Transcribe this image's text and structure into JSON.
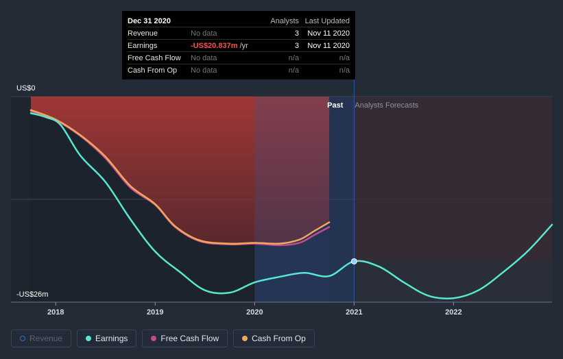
{
  "tooltip": {
    "date": "Dec 31 2020",
    "col_analysts": "Analysts",
    "col_updated": "Last Updated",
    "rows": [
      {
        "label": "Revenue",
        "value": "No data",
        "unit": "",
        "analysts": "3",
        "updated": "Nov 11 2020"
      },
      {
        "label": "Earnings",
        "value": "-US$20.837m",
        "unit": "/yr",
        "analysts": "3",
        "updated": "Nov 11 2020"
      },
      {
        "label": "Free Cash Flow",
        "value": "No data",
        "unit": "",
        "analysts": "n/a",
        "updated": "n/a"
      },
      {
        "label": "Cash From Op",
        "value": "No data",
        "unit": "",
        "analysts": "n/a",
        "updated": "n/a"
      }
    ]
  },
  "legend": [
    {
      "label": "Revenue",
      "color": "#2a6fd6",
      "active": false
    },
    {
      "label": "Earnings",
      "color": "#58e8d2",
      "active": true
    },
    {
      "label": "Free Cash Flow",
      "color": "#c84b8c",
      "active": true
    },
    {
      "label": "Cash From Op",
      "color": "#f0a860",
      "active": true
    }
  ],
  "chart_data": {
    "type": "line",
    "y_top_label": "US$0",
    "y_bottom_label": "-US$26m",
    "ylim": [
      -26,
      0
    ],
    "xlim": [
      2017.55,
      2022.99
    ],
    "x_ticks": [
      2018,
      2019,
      2020,
      2021,
      2022
    ],
    "x_tick_labels": [
      "2018",
      "2019",
      "2020",
      "2021",
      "2022"
    ],
    "past_label": "Past",
    "forecast_label": "Analysts Forecasts",
    "divider_x": 2021.0,
    "colors": {
      "earnings": "#58e8d2",
      "free_cash_flow": "#c84b8c",
      "cash_from_op": "#f0a860"
    },
    "series": [
      {
        "name": "Earnings",
        "x": [
          2017.75,
          2017.9,
          2018.05,
          2018.25,
          2018.5,
          2018.75,
          2019.0,
          2019.25,
          2019.5,
          2019.75,
          2020.0,
          2020.25,
          2020.5,
          2020.75,
          2021.0,
          2021.25,
          2021.5,
          2021.75,
          2022.0,
          2022.25,
          2022.5,
          2022.75,
          2022.99
        ],
        "y": [
          -2.1,
          -2.6,
          -3.6,
          -7.5,
          -10.8,
          -15.5,
          -19.6,
          -22.2,
          -24.5,
          -24.8,
          -23.5,
          -22.8,
          -22.3,
          -22.7,
          -20.84,
          -21.5,
          -23.5,
          -25.2,
          -25.5,
          -24.5,
          -22.2,
          -19.5,
          -16.2
        ]
      },
      {
        "name": "Free Cash Flow",
        "x": [
          2017.75,
          2018.0,
          2018.25,
          2018.5,
          2018.75,
          2019.0,
          2019.2,
          2019.45,
          2019.75,
          2020.0,
          2020.25,
          2020.45,
          2020.6,
          2020.75
        ],
        "y": [
          -1.85,
          -3.0,
          -5.0,
          -7.8,
          -11.5,
          -13.7,
          -16.5,
          -18.3,
          -18.7,
          -18.6,
          -18.8,
          -18.5,
          -17.5,
          -16.5
        ]
      },
      {
        "name": "Cash From Op",
        "x": [
          2017.75,
          2018.0,
          2018.25,
          2018.5,
          2018.75,
          2019.0,
          2019.2,
          2019.45,
          2019.75,
          2020.0,
          2020.25,
          2020.45,
          2020.6,
          2020.75
        ],
        "y": [
          -1.7,
          -2.9,
          -4.9,
          -7.6,
          -11.3,
          -13.6,
          -16.4,
          -18.2,
          -18.6,
          -18.5,
          -18.6,
          -18.1,
          -17.0,
          -15.9
        ]
      }
    ],
    "highlight_point": {
      "x": 2021.0,
      "y": -20.84
    }
  }
}
